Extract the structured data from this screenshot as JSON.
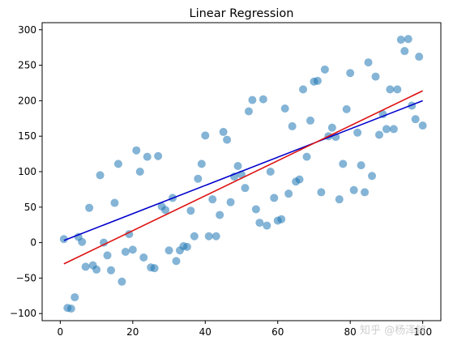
{
  "chart_data": {
    "type": "scatter",
    "title": "Linear Regression",
    "xlabel": "",
    "ylabel": "",
    "xlim": [
      -5,
      105
    ],
    "ylim": [
      -110,
      310
    ],
    "x_ticks": [
      0,
      20,
      40,
      60,
      80,
      100
    ],
    "y_ticks": [
      -100,
      -50,
      0,
      50,
      100,
      150,
      200,
      250,
      300
    ],
    "grid": false,
    "legend": "none",
    "series": [
      {
        "kind": "scatter",
        "color": "#1f77b4",
        "points": [
          [
            1,
            5
          ],
          [
            2,
            -92
          ],
          [
            3,
            -93
          ],
          [
            4,
            -77
          ],
          [
            5,
            8
          ],
          [
            6,
            1
          ],
          [
            7,
            -34
          ],
          [
            8,
            49
          ],
          [
            9,
            -32
          ],
          [
            10,
            -38
          ],
          [
            11,
            95
          ],
          [
            12,
            0
          ],
          [
            13,
            -18
          ],
          [
            14,
            -39
          ],
          [
            15,
            56
          ],
          [
            16,
            111
          ],
          [
            17,
            -55
          ],
          [
            18,
            -13
          ],
          [
            19,
            12
          ],
          [
            20,
            -10
          ],
          [
            21,
            130
          ],
          [
            22,
            100
          ],
          [
            23,
            -21
          ],
          [
            24,
            121
          ],
          [
            25,
            -35
          ],
          [
            26,
            -36
          ],
          [
            27,
            122
          ],
          [
            28,
            51
          ],
          [
            29,
            46
          ],
          [
            30,
            -11
          ],
          [
            31,
            63
          ],
          [
            32,
            -26
          ],
          [
            33,
            -11
          ],
          [
            34,
            -5
          ],
          [
            35,
            -6
          ],
          [
            36,
            45
          ],
          [
            37,
            9
          ],
          [
            38,
            90
          ],
          [
            39,
            111
          ],
          [
            40,
            151
          ],
          [
            41,
            9
          ],
          [
            42,
            61
          ],
          [
            43,
            9
          ],
          [
            44,
            39
          ],
          [
            45,
            156
          ],
          [
            46,
            145
          ],
          [
            47,
            57
          ],
          [
            48,
            93
          ],
          [
            49,
            108
          ],
          [
            50,
            96
          ],
          [
            51,
            77
          ],
          [
            52,
            185
          ],
          [
            53,
            201
          ],
          [
            54,
            47
          ],
          [
            55,
            28
          ],
          [
            56,
            202
          ],
          [
            57,
            24
          ],
          [
            58,
            100
          ],
          [
            59,
            63
          ],
          [
            60,
            31
          ],
          [
            61,
            33
          ],
          [
            62,
            189
          ],
          [
            63,
            69
          ],
          [
            64,
            164
          ],
          [
            65,
            86
          ],
          [
            66,
            89
          ],
          [
            67,
            216
          ],
          [
            68,
            121
          ],
          [
            69,
            172
          ],
          [
            70,
            227
          ],
          [
            71,
            228
          ],
          [
            72,
            71
          ],
          [
            73,
            244
          ],
          [
            74,
            150
          ],
          [
            75,
            162
          ],
          [
            76,
            149
          ],
          [
            77,
            61
          ],
          [
            78,
            111
          ],
          [
            79,
            188
          ],
          [
            80,
            239
          ],
          [
            81,
            74
          ],
          [
            82,
            155
          ],
          [
            83,
            109
          ],
          [
            84,
            71
          ],
          [
            85,
            254
          ],
          [
            86,
            94
          ],
          [
            87,
            234
          ],
          [
            88,
            152
          ],
          [
            89,
            181
          ],
          [
            90,
            160
          ],
          [
            91,
            216
          ],
          [
            92,
            160
          ],
          [
            93,
            216
          ],
          [
            94,
            286
          ],
          [
            95,
            270
          ],
          [
            96,
            287
          ],
          [
            97,
            193
          ],
          [
            98,
            174
          ],
          [
            99,
            262
          ],
          [
            100,
            165
          ]
        ]
      },
      {
        "kind": "line",
        "color": "#0000cc",
        "x": [
          1,
          100
        ],
        "y": [
          3,
          200
        ]
      },
      {
        "kind": "line",
        "color": "#dd1111",
        "x": [
          1,
          100
        ],
        "y": [
          -30,
          214
        ]
      }
    ]
  },
  "watermark": "知乎 @杨泽铭"
}
